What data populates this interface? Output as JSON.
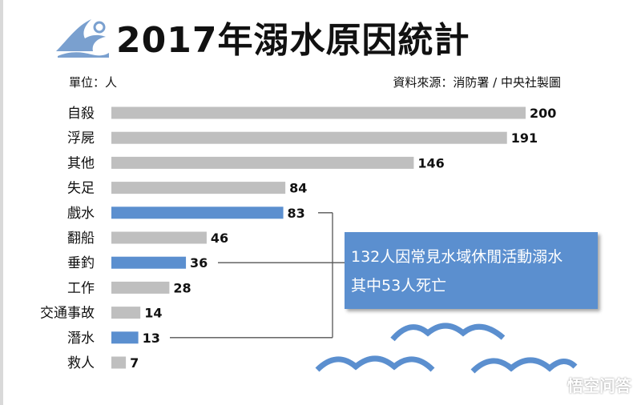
{
  "header": {
    "title": "2017年溺水原因統計",
    "unit_label": "單位：人",
    "source_label": "資料來源：消防署 / 中央社製圖",
    "logo_icon": "wave-icon"
  },
  "chart_data": {
    "type": "bar",
    "orientation": "horizontal",
    "title": "2017年溺水原因統計",
    "xlabel": "",
    "ylabel": "",
    "xlim": [
      0,
      200
    ],
    "categories": [
      "自殺",
      "浮屍",
      "其他",
      "失足",
      "戲水",
      "翻船",
      "垂釣",
      "工作",
      "交通事故",
      "潛水",
      "救人"
    ],
    "values": [
      200,
      191,
      146,
      84,
      83,
      46,
      36,
      28,
      14,
      13,
      7
    ],
    "highlighted": [
      "戲水",
      "垂釣",
      "潛水"
    ],
    "colors": {
      "default": "#bfbfbf",
      "highlight": "#5b8fcf"
    },
    "grid": false,
    "annotation": {
      "line1": "132人因常見水域休閒活動溺水",
      "line2": "其中53人死亡",
      "targets": [
        "戲水",
        "垂釣",
        "潛水"
      ]
    }
  },
  "decor": {
    "waves": "water-wave-icon"
  },
  "watermark": {
    "text": "悟空问答"
  }
}
